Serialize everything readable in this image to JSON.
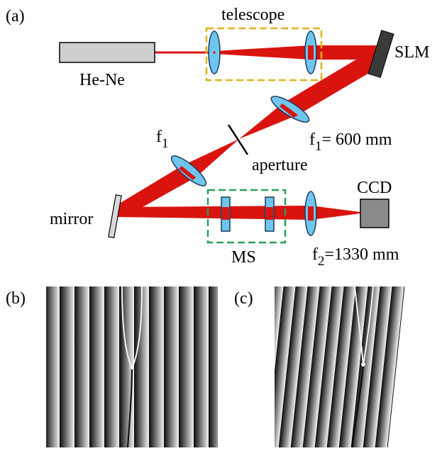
{
  "panels": {
    "a": "(a)",
    "b": "(b)",
    "c": "(c)"
  },
  "labels": {
    "telescope": "telescope",
    "laser": "He-Ne",
    "slm": "SLM",
    "f1_main": "f",
    "f1_sub": "1",
    "f1_value": "= 600 mm",
    "f1_left_main": "f",
    "f1_left_sub": "1",
    "aperture": "aperture",
    "mirror": "mirror",
    "ccd": "CCD",
    "ms": "MS",
    "f2_main": "f",
    "f2_sub": "2",
    "f2_value": "=1330 mm"
  },
  "colors": {
    "beam": "#d9140f",
    "lens_fill": "#6ec6ef",
    "lens_stroke": "#1f3b57",
    "telescope_box": "#e0b21e",
    "ms_box": "#2aa05a",
    "laser_fill": "#cfcfcf",
    "slm_fill": "#3a3a3a",
    "ccd_fill": "#8a8a8a",
    "mirror_fill": "#d8d8d8"
  }
}
